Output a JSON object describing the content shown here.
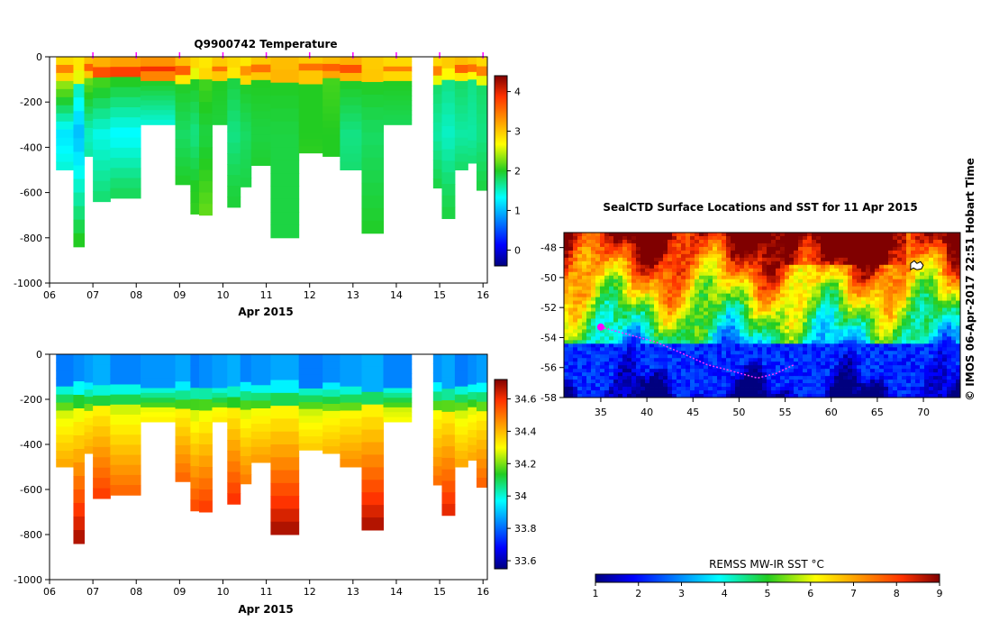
{
  "charts": {
    "temperature": {
      "title": "Q9900742  Temperature",
      "xlabel": "Apr 2015"
    },
    "salinity": {
      "xlabel": "Apr 2015"
    },
    "map": {
      "title": "SealCTD Surface Locations and SST for 11 Apr 2015",
      "colorbar_label": "REMSS MW-IR SST °C",
      "credit": "©  IMOS 06-Apr-2017 22:51 Hobart Time"
    }
  },
  "chart_data": [
    {
      "id": "temperature",
      "type": "heatmap",
      "title": "Q9900742  Temperature",
      "xlabel": "Apr 2015",
      "ylabel": "",
      "xlim": [
        6,
        16.1
      ],
      "ylim": [
        -1000,
        0
      ],
      "x_ticks": [
        "06",
        "07",
        "08",
        "09",
        "10",
        "11",
        "12",
        "13",
        "14",
        "15",
        "16"
      ],
      "y_ticks": [
        0,
        -200,
        -400,
        -600,
        -800,
        -1000
      ],
      "colorbar": {
        "min": -0.4,
        "max": 4.4,
        "ticks": [
          0,
          1,
          2,
          3,
          4
        ],
        "colormap": "jet"
      },
      "markers_x": [
        7.0,
        8.0,
        9.0,
        10.0,
        11.0,
        12.0,
        13.0,
        14.0,
        15.0,
        16.0
      ],
      "profiles": [
        {
          "x0": 6.15,
          "x1": 6.55,
          "depth": 500,
          "z": [
            1.9,
            3.4,
            2.9,
            2.4,
            1.2,
            1.6,
            2.0
          ]
        },
        {
          "x0": 6.55,
          "x1": 6.8,
          "depth": 840,
          "z": [
            1.8,
            3.3,
            2.6,
            1.6,
            1.0,
            1.5,
            2.0
          ]
        },
        {
          "x0": 6.8,
          "x1": 7.0,
          "depth": 440,
          "z": [
            2.0,
            3.6,
            3.0,
            2.2,
            1.5,
            1.8,
            2.0
          ]
        },
        {
          "x0": 7.0,
          "x1": 7.4,
          "depth": 640,
          "z": [
            2.0,
            3.7,
            3.2,
            2.1,
            1.4,
            1.7,
            2.0
          ]
        },
        {
          "x0": 7.4,
          "x1": 8.1,
          "depth": 625,
          "z": [
            2.0,
            3.8,
            3.3,
            2.0,
            1.3,
            1.8,
            2.0
          ]
        },
        {
          "x0": 8.1,
          "x1": 8.9,
          "depth": 300,
          "z": [
            2.1,
            3.9,
            3.4,
            2.0,
            1.3,
            1.7,
            2.0
          ]
        },
        {
          "x0": 8.9,
          "x1": 9.25,
          "depth": 565,
          "z": [
            2.3,
            3.6,
            2.8,
            2.0,
            1.8,
            2.0,
            2.2
          ]
        },
        {
          "x0": 9.25,
          "x1": 9.45,
          "depth": 695,
          "z": [
            2.1,
            3.4,
            2.6,
            2.0,
            1.7,
            2.0,
            2.1
          ]
        },
        {
          "x0": 9.45,
          "x1": 9.75,
          "depth": 700,
          "z": [
            2.2,
            3.3,
            2.9,
            2.1,
            1.9,
            2.1,
            2.3
          ]
        },
        {
          "x0": 9.75,
          "x1": 10.1,
          "depth": 300,
          "z": [
            2.1,
            3.5,
            3.0,
            2.0,
            1.9,
            1.9,
            2.0
          ]
        },
        {
          "x0": 10.1,
          "x1": 10.4,
          "depth": 665,
          "z": [
            2.0,
            3.4,
            2.8,
            1.9,
            1.7,
            1.9,
            2.0
          ]
        },
        {
          "x0": 10.4,
          "x1": 10.65,
          "depth": 575,
          "z": [
            2.1,
            3.3,
            2.9,
            2.0,
            1.8,
            1.9,
            2.1
          ]
        },
        {
          "x0": 10.65,
          "x1": 11.1,
          "depth": 480,
          "z": [
            2.0,
            3.5,
            3.0,
            2.0,
            1.9,
            2.0,
            2.0
          ]
        },
        {
          "x0": 11.1,
          "x1": 11.75,
          "depth": 800,
          "z": [
            2.0,
            3.6,
            3.1,
            2.0,
            1.9,
            1.9,
            1.9
          ]
        },
        {
          "x0": 11.75,
          "x1": 12.3,
          "depth": 425,
          "z": [
            2.0,
            3.5,
            3.0,
            2.0,
            2.0,
            2.1,
            2.0
          ]
        },
        {
          "x0": 12.3,
          "x1": 12.7,
          "depth": 440,
          "z": [
            2.0,
            3.6,
            3.2,
            2.1,
            2.0,
            2.0,
            2.0
          ]
        },
        {
          "x0": 12.7,
          "x1": 13.2,
          "depth": 500,
          "z": [
            1.9,
            3.7,
            3.1,
            2.0,
            1.7,
            1.8,
            1.9
          ]
        },
        {
          "x0": 13.2,
          "x1": 13.7,
          "depth": 780,
          "z": [
            2.1,
            3.5,
            3.0,
            2.0,
            1.8,
            1.9,
            2.0
          ]
        },
        {
          "x0": 13.7,
          "x1": 14.35,
          "depth": 300,
          "z": [
            2.0,
            3.4,
            2.9,
            2.0,
            1.8,
            1.9,
            2.0
          ]
        },
        {
          "x0": 14.85,
          "x1": 15.05,
          "depth": 580,
          "z": [
            2.1,
            3.4,
            2.6,
            1.8,
            1.6,
            1.9,
            2.0
          ]
        },
        {
          "x0": 15.05,
          "x1": 15.35,
          "depth": 715,
          "z": [
            2.0,
            3.5,
            2.7,
            1.7,
            1.5,
            1.8,
            2.0
          ]
        },
        {
          "x0": 15.35,
          "x1": 15.65,
          "depth": 500,
          "z": [
            2.1,
            3.6,
            2.8,
            1.8,
            1.6,
            1.9,
            2.0
          ]
        },
        {
          "x0": 15.65,
          "x1": 15.85,
          "depth": 470,
          "z": [
            2.0,
            3.5,
            2.7,
            1.7,
            1.6,
            1.9,
            2.0
          ]
        },
        {
          "x0": 15.85,
          "x1": 16.1,
          "depth": 590,
          "z": [
            2.0,
            3.4,
            2.6,
            1.8,
            1.7,
            1.9,
            2.0
          ]
        }
      ]
    },
    {
      "id": "salinity",
      "type": "heatmap",
      "title": "",
      "xlabel": "Apr 2015",
      "ylabel": "",
      "xlim": [
        6,
        16.1
      ],
      "ylim": [
        -1000,
        0
      ],
      "x_ticks": [
        "06",
        "07",
        "08",
        "09",
        "10",
        "11",
        "12",
        "13",
        "14",
        "15",
        "16"
      ],
      "y_ticks": [
        0,
        -200,
        -400,
        -600,
        -800,
        -1000
      ],
      "colorbar": {
        "min": 33.55,
        "max": 34.72,
        "ticks": [
          33.6,
          33.8,
          34,
          34.2,
          34.4,
          34.6
        ],
        "colormap": "jet"
      },
      "profiles": "same_as_temperature"
    },
    {
      "id": "sst_map",
      "type": "heatmap",
      "title": "SealCTD Surface Locations and SST for 11 Apr 2015",
      "xlabel": "",
      "ylabel": "",
      "xlim": [
        31,
        74
      ],
      "ylim": [
        -58,
        -47
      ],
      "x_ticks": [
        35,
        40,
        45,
        50,
        55,
        60,
        65,
        70
      ],
      "y_ticks": [
        -48,
        -50,
        -52,
        -54,
        -56,
        -58
      ],
      "colorbar": {
        "label": "REMSS MW-IR SST °C",
        "min": 1,
        "max": 9,
        "ticks": [
          1,
          2,
          3,
          4,
          5,
          6,
          7,
          8,
          9
        ],
        "colormap": "jet"
      },
      "seal_track": [
        [
          35.0,
          -53.3
        ],
        [
          38,
          -53.8
        ],
        [
          41,
          -54.3
        ],
        [
          44,
          -55.1
        ],
        [
          46.5,
          -55.8
        ],
        [
          49,
          -56.2
        ],
        [
          52,
          -56.7
        ],
        [
          54,
          -56.4
        ],
        [
          56,
          -55.8
        ]
      ],
      "seal_position": [
        35.0,
        -53.3
      ],
      "island_location": [
        69.3,
        -49.3
      ]
    }
  ]
}
